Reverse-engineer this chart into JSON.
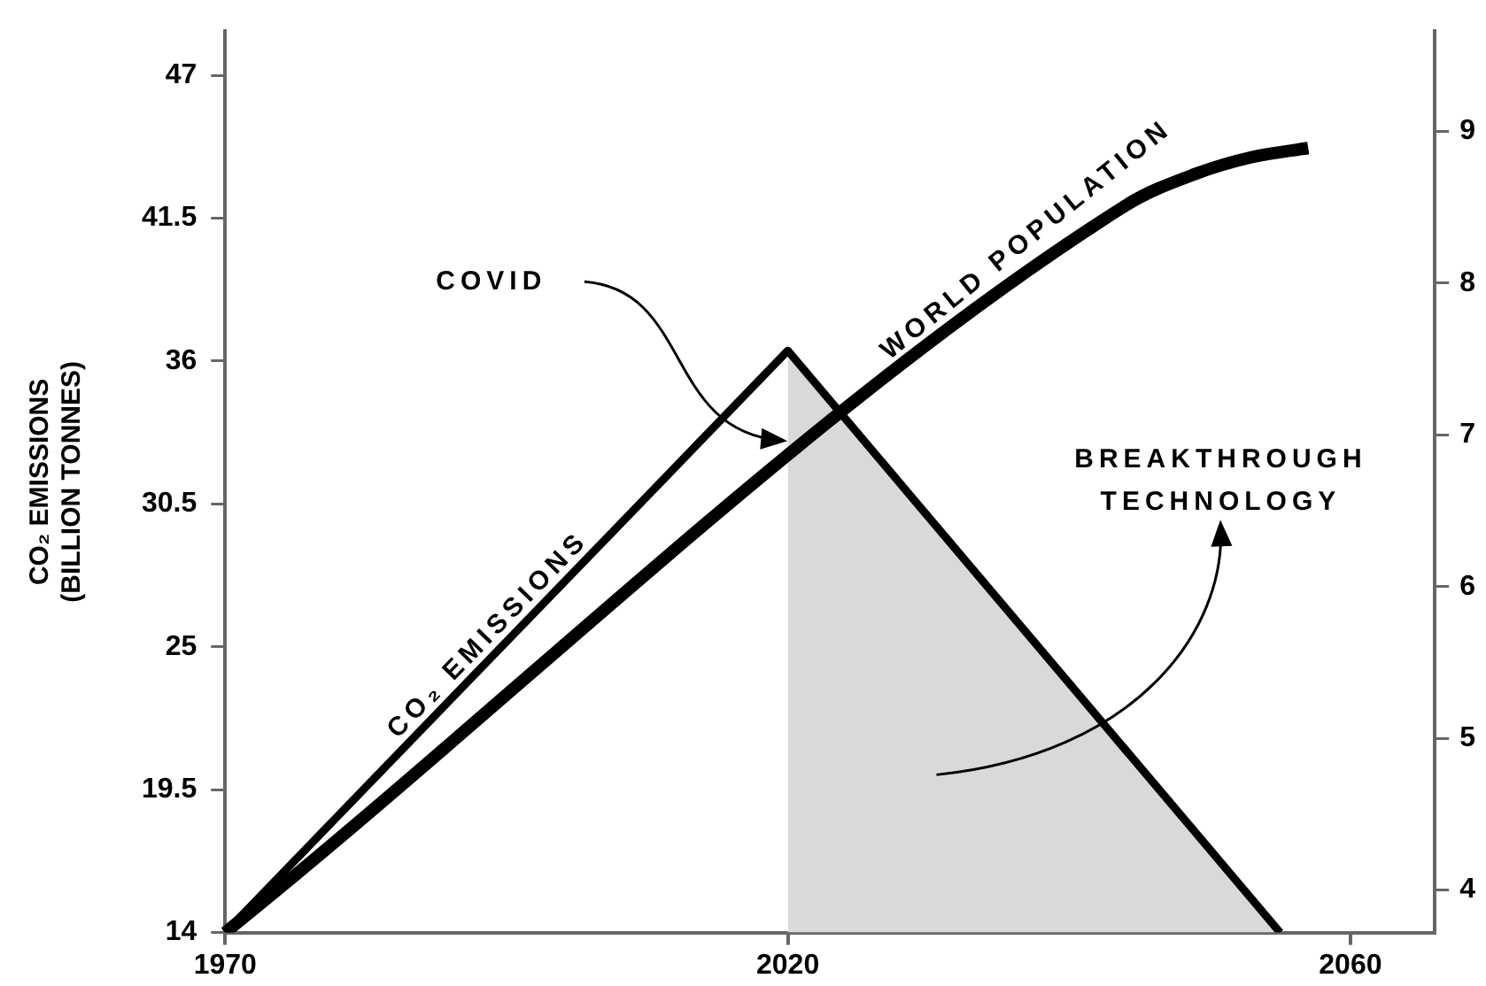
{
  "chart_data": {
    "type": "line",
    "ylabel": "CO₂ EMISSIONS\n(BILLION TONNES)",
    "categories": [
      "1970",
      null,
      null,
      null,
      null,
      null,
      null,
      null,
      null,
      null,
      null,
      null,
      null,
      null,
      null,
      null,
      null,
      null,
      null,
      null,
      null,
      null,
      null,
      null,
      null,
      null,
      null,
      null,
      null,
      null,
      null,
      null,
      null,
      null,
      null,
      null,
      null,
      null,
      null,
      null,
      "2020",
      null,
      null,
      null,
      null,
      null,
      null,
      null,
      null,
      null,
      null,
      null,
      null,
      null,
      null,
      null,
      null,
      null,
      null,
      null,
      null,
      null,
      null,
      null,
      null,
      null,
      null,
      null,
      null,
      null,
      null,
      null,
      null,
      null,
      null,
      null,
      null,
      null,
      null,
      null,
      "2060",
      null,
      null,
      null,
      null,
      null,
      null
    ],
    "ylim": [
      14,
      48.7
    ],
    "yticks": [
      14,
      19.5,
      25,
      30.5,
      36,
      41.5,
      47
    ],
    "y2lim": [
      3.72,
      9.66
    ],
    "y2ticks": [
      4,
      5,
      6,
      7,
      8,
      9
    ],
    "series": [
      {
        "name": "CO₂ EMISSIONS",
        "color": "#000000",
        "values": [
          14,
          null,
          null,
          null,
          null,
          null,
          null,
          null,
          null,
          null,
          null,
          null,
          null,
          null,
          null,
          null,
          null,
          null,
          null,
          null,
          null,
          null,
          null,
          null,
          null,
          null,
          null,
          null,
          null,
          null,
          null,
          null,
          null,
          null,
          null,
          null,
          null,
          null,
          null,
          null,
          36.4,
          null,
          null,
          null,
          null,
          null,
          null,
          null,
          null,
          null,
          null,
          null,
          null,
          null,
          null,
          null,
          null,
          null,
          null,
          null,
          null,
          null,
          null,
          null,
          null,
          null,
          null,
          null,
          null,
          null,
          null,
          null,
          null,
          null,
          null,
          14,
          null,
          null,
          null,
          null,
          null,
          null,
          null,
          null,
          null,
          null,
          null
        ]
      },
      {
        "type": "area",
        "color": "#d9d9d9",
        "values": [
          null,
          null,
          null,
          null,
          null,
          null,
          null,
          null,
          null,
          null,
          null,
          null,
          null,
          null,
          null,
          null,
          null,
          null,
          null,
          null,
          null,
          null,
          null,
          null,
          null,
          null,
          null,
          null,
          null,
          null,
          null,
          null,
          null,
          null,
          null,
          null,
          null,
          null,
          null,
          null,
          36.4,
          null,
          null,
          null,
          null,
          null,
          null,
          null,
          null,
          null,
          null,
          null,
          null,
          null,
          null,
          null,
          null,
          null,
          null,
          null,
          null,
          null,
          null,
          null,
          null,
          null,
          null,
          null,
          null,
          null,
          null,
          null,
          null,
          null,
          null,
          14,
          null,
          null,
          null,
          null,
          null,
          null,
          null,
          null,
          null,
          null,
          null
        ]
      },
      {
        "name": "WORLD POPULATION",
        "axis": "y2",
        "color": "#000000",
        "values": [
          3.72,
          null,
          null,
          null,
          null,
          null,
          null,
          null,
          null,
          null,
          null,
          null,
          null,
          null,
          null,
          null,
          null,
          null,
          null,
          null,
          null,
          null,
          null,
          null,
          null,
          null,
          null,
          null,
          null,
          null,
          null,
          null,
          null,
          null,
          null,
          null,
          null,
          null,
          null,
          null,
          null,
          null,
          null,
          null,
          null,
          null,
          null,
          null,
          null,
          null,
          null,
          null,
          null,
          null,
          null,
          null,
          null,
          null,
          null,
          null,
          null,
          null,
          null,
          null,
          8.51,
          null,
          null,
          null,
          null,
          8.72,
          null,
          null,
          null,
          8.83,
          null,
          null,
          null,
          8.89,
          null,
          null,
          null,
          null,
          null,
          null,
          null,
          null,
          null
        ]
      }
    ],
    "annotations": [
      "COVID",
      "BREAKTHROUGH\nTECHNOLOGY"
    ],
    "marker": "none",
    "grid": false,
    "legend": false
  }
}
